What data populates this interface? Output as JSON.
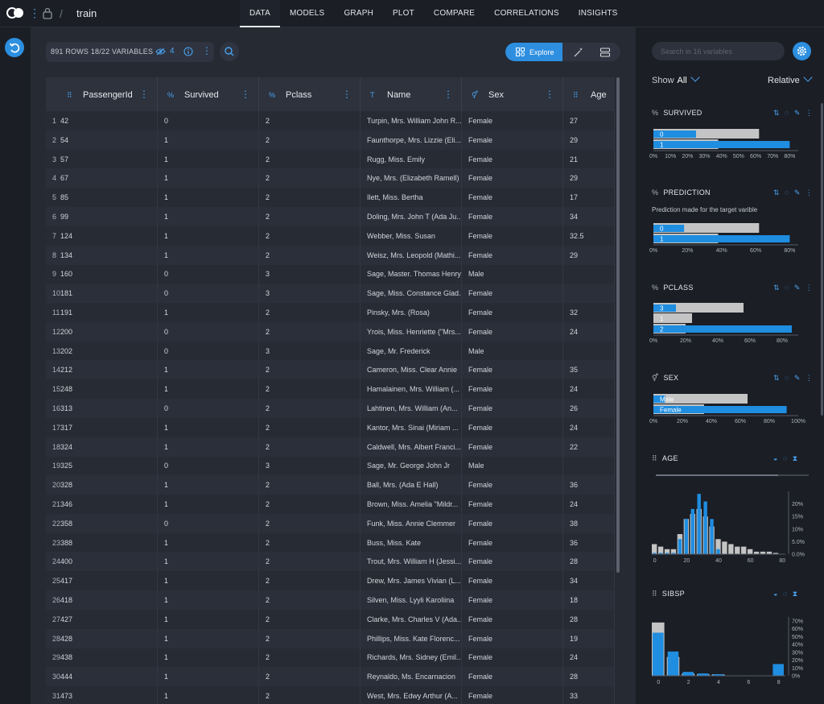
{
  "header": {
    "project": "train",
    "nav": [
      "DATA",
      "MODELS",
      "GRAPH",
      "PLOT",
      "COMPARE",
      "CORRELATIONS",
      "INSIGHTS"
    ],
    "active": "DATA"
  },
  "toolbar": {
    "summary": "891 ROWS 18/22 VARIABLES",
    "hidden_count": "4",
    "explore_label": "Explore"
  },
  "table": {
    "columns": [
      "PassengerId",
      "Survived",
      "Pclass",
      "Name",
      "Sex",
      "Age"
    ],
    "column_icons": [
      "hash",
      "percent",
      "percent",
      "text",
      "gender",
      "hash"
    ],
    "rows": [
      [
        "1",
        "42",
        "0",
        "2",
        "Turpin, Mrs. William John R...",
        "Female",
        "27"
      ],
      [
        "2",
        "54",
        "1",
        "2",
        "Faunthorpe, Mrs. Lizzie (Eli...",
        "Female",
        "29"
      ],
      [
        "3",
        "57",
        "1",
        "2",
        "Rugg, Miss. Emily",
        "Female",
        "21"
      ],
      [
        "4",
        "67",
        "1",
        "2",
        "Nye, Mrs. (Elizabeth Ramell)",
        "Female",
        "29"
      ],
      [
        "5",
        "85",
        "1",
        "2",
        "Ilett, Miss. Bertha",
        "Female",
        "17"
      ],
      [
        "6",
        "99",
        "1",
        "2",
        "Doling, Mrs. John T (Ada Ju...",
        "Female",
        "34"
      ],
      [
        "7",
        "124",
        "1",
        "2",
        "Webber, Miss. Susan",
        "Female",
        "32.5"
      ],
      [
        "8",
        "134",
        "1",
        "2",
        "Weisz, Mrs. Leopold (Mathi...",
        "Female",
        "29"
      ],
      [
        "9",
        "160",
        "0",
        "3",
        "Sage, Master. Thomas Henry",
        "Male",
        ""
      ],
      [
        "10",
        "181",
        "0",
        "3",
        "Sage, Miss. Constance Glad...",
        "Female",
        ""
      ],
      [
        "11",
        "191",
        "1",
        "2",
        "Pinsky, Mrs. (Rosa)",
        "Female",
        "32"
      ],
      [
        "12",
        "200",
        "0",
        "2",
        "Yrois, Miss. Henriette (\"Mrs...",
        "Female",
        "24"
      ],
      [
        "13",
        "202",
        "0",
        "3",
        "Sage, Mr. Frederick",
        "Male",
        ""
      ],
      [
        "14",
        "212",
        "1",
        "2",
        "Cameron, Miss. Clear Annie",
        "Female",
        "35"
      ],
      [
        "15",
        "248",
        "1",
        "2",
        "Hamalainen, Mrs. William (...",
        "Female",
        "24"
      ],
      [
        "16",
        "313",
        "0",
        "2",
        "Lahtinen, Mrs. William (An...",
        "Female",
        "26"
      ],
      [
        "17",
        "317",
        "1",
        "2",
        "Kantor, Mrs. Sinai (Miriam ...",
        "Female",
        "24"
      ],
      [
        "18",
        "324",
        "1",
        "2",
        "Caldwell, Mrs. Albert Franci...",
        "Female",
        "22"
      ],
      [
        "19",
        "325",
        "0",
        "3",
        "Sage, Mr. George John Jr",
        "Male",
        ""
      ],
      [
        "20",
        "328",
        "1",
        "2",
        "Ball, Mrs. (Ada E Hall)",
        "Female",
        "36"
      ],
      [
        "21",
        "346",
        "1",
        "2",
        "Brown, Miss. Amelia \"Mildr...",
        "Female",
        "24"
      ],
      [
        "22",
        "358",
        "0",
        "2",
        "Funk, Miss. Annie Clemmer",
        "Female",
        "38"
      ],
      [
        "23",
        "388",
        "1",
        "2",
        "Buss, Miss. Kate",
        "Female",
        "36"
      ],
      [
        "24",
        "400",
        "1",
        "2",
        "Trout, Mrs. William H (Jessi...",
        "Female",
        "28"
      ],
      [
        "25",
        "417",
        "1",
        "2",
        "Drew, Mrs. James Vivian (L...",
        "Female",
        "34"
      ],
      [
        "26",
        "418",
        "1",
        "2",
        "Silven, Miss. Lyyli Karoliina",
        "Female",
        "18"
      ],
      [
        "27",
        "427",
        "1",
        "2",
        "Clarke, Mrs. Charles V (Ada...",
        "Female",
        "28"
      ],
      [
        "28",
        "428",
        "1",
        "2",
        "Phillips, Miss. Kate Florenc...",
        "Female",
        "19"
      ],
      [
        "29",
        "438",
        "1",
        "2",
        "Richards, Mrs. Sidney (Emil...",
        "Female",
        "24"
      ],
      [
        "30",
        "444",
        "1",
        "2",
        "Reynaldo, Ms. Encarnacion",
        "Female",
        "28"
      ],
      [
        "31",
        "473",
        "1",
        "2",
        "West, Mrs. Edwy Arthur (A...",
        "Female",
        "33"
      ]
    ]
  },
  "panel": {
    "search_placeholder": "Search in 16 variables",
    "show_label": "Show",
    "show_value": "All",
    "scale_label": "Relative"
  },
  "colors": {
    "accent": "#2d8fe0",
    "bar_blue": "#1f8de0",
    "bar_gray": "#c4c4c4"
  },
  "chart_data": [
    {
      "type": "bar",
      "name": "SURVIVED",
      "categories": [
        "0",
        "1"
      ],
      "series": [
        {
          "values": [
            62,
            38
          ]
        },
        {
          "values": [
            25,
            80
          ]
        }
      ],
      "xticks": [
        "0%",
        "10%",
        "20%",
        "30%",
        "40%",
        "50%",
        "60%",
        "70%",
        "80%"
      ],
      "xmax": 85
    },
    {
      "type": "bar",
      "name": "PREDICTION",
      "note": "Prediction made for the target varible",
      "categories": [
        "0",
        "1"
      ],
      "series": [
        {
          "values": [
            62,
            38
          ]
        },
        {
          "values": [
            18,
            80
          ]
        }
      ],
      "xticks": [
        "0%",
        "20%",
        "40%",
        "60%",
        "80%"
      ],
      "xmax": 85
    },
    {
      "type": "bar",
      "name": "PCLASS",
      "categories": [
        "3",
        "1",
        "2"
      ],
      "series": [
        {
          "values": [
            56,
            24,
            20
          ]
        },
        {
          "values": [
            14,
            0,
            86
          ]
        }
      ],
      "xticks": [
        "0%",
        "20%",
        "40%",
        "60%",
        "80%"
      ],
      "xmax": 90
    },
    {
      "type": "bar",
      "name": "SEX",
      "categories": [
        "Male",
        "Female"
      ],
      "series": [
        {
          "values": [
            65,
            35
          ]
        },
        {
          "values": [
            8,
            92
          ]
        }
      ],
      "xticks": [
        "0%",
        "20%",
        "40%",
        "60%",
        "80%",
        "100%"
      ],
      "xmax": 100
    },
    {
      "type": "bar",
      "name": "AGE",
      "x": [
        0,
        4,
        8,
        12,
        16,
        20,
        24,
        28,
        32,
        36,
        40,
        44,
        48,
        52,
        56,
        60,
        64,
        68,
        72,
        76
      ],
      "series": [
        {
          "values": [
            4,
            3,
            2,
            2,
            8,
            14,
            16,
            18,
            15,
            11,
            6,
            5,
            4,
            3,
            3,
            2,
            1,
            1,
            1,
            0.5
          ]
        },
        {
          "values": [
            0.5,
            0.5,
            0.5,
            0.5,
            6,
            14,
            18,
            24,
            21,
            14,
            2,
            0,
            0,
            0,
            0,
            0,
            0,
            0,
            0,
            0
          ]
        }
      ],
      "xticks": [
        "0",
        "20",
        "40",
        "60",
        "80"
      ],
      "yticks": [
        "0.0%",
        "5.0%",
        "10%",
        "15%",
        "20%"
      ],
      "ymax": 25
    },
    {
      "type": "bar",
      "name": "SIBSP",
      "x": [
        0,
        1,
        2,
        3,
        4,
        5,
        8
      ],
      "series": [
        {
          "values": [
            68,
            24,
            3,
            2,
            2,
            0.5,
            0.5
          ]
        },
        {
          "values": [
            55,
            31,
            5,
            3,
            2,
            0,
            15
          ]
        }
      ],
      "xticks": [
        "0",
        "2",
        "4",
        "6",
        "8"
      ],
      "yticks": [
        "0%",
        "10%",
        "20%",
        "30%",
        "40%",
        "50%",
        "60%",
        "70%"
      ],
      "ymax": 75
    }
  ]
}
